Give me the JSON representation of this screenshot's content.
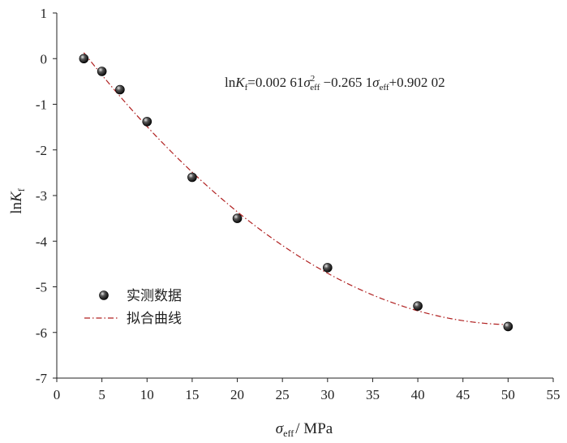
{
  "chart_data": {
    "type": "scatter",
    "xlim": [
      0,
      55
    ],
    "ylim": [
      -7,
      1
    ],
    "x_ticks": [
      "0",
      "5",
      "10",
      "15",
      "20",
      "25",
      "30",
      "35",
      "40",
      "45",
      "50",
      "55"
    ],
    "y_ticks": [
      "1",
      "0",
      "-1",
      "-2",
      "-3",
      "-4",
      "-5",
      "-6",
      "-7"
    ],
    "xlabel": {
      "symbol": "σ",
      "sub": "eff",
      "text": "/ MPa"
    },
    "ylabel": {
      "prefix": "ln",
      "symbol": "K",
      "sub": "f"
    },
    "series": [
      {
        "name": "实测数据",
        "kind": "scatter",
        "color": "#111111",
        "x": [
          3,
          5,
          7,
          10,
          15,
          20,
          30,
          40,
          50
        ],
        "y": [
          0.0,
          -0.28,
          -0.68,
          -1.38,
          -2.6,
          -3.5,
          -4.58,
          -5.42,
          -5.87
        ]
      },
      {
        "name": "拟合曲线",
        "kind": "fit",
        "color": "#b02020",
        "x_range": [
          3,
          50
        ],
        "coefficients": {
          "a": 0.00261,
          "b": -0.2651,
          "c": 0.90202
        }
      }
    ],
    "equation": {
      "lhs_prefix": "ln",
      "lhs_symbol": "K",
      "lhs_sub": "f",
      "a_text": "0.002 61",
      "b_text": "0.265 1",
      "c_text": "0.902 02",
      "var_symbol": "σ",
      "var_sub": "eff",
      "power": "2"
    },
    "legend_position": "bottom-left",
    "grid": false
  }
}
